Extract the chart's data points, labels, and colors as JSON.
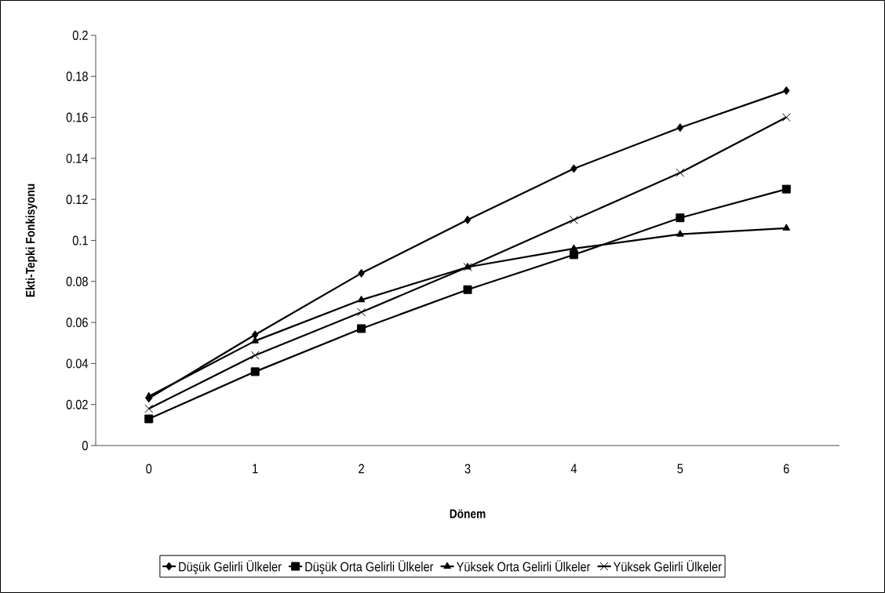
{
  "chart_data": {
    "type": "line",
    "xlabel": "Dönem",
    "ylabel": "Ekti-Tepki Fonkisyonu",
    "categories": [
      "0",
      "1",
      "2",
      "3",
      "4",
      "5",
      "6"
    ],
    "ylim": [
      0,
      0.2
    ],
    "yticks": [
      0,
      0.02,
      0.04,
      0.06,
      0.08,
      0.1,
      0.12,
      0.14,
      0.16,
      0.18,
      0.2
    ],
    "legend": "bottom",
    "line_style": "solid",
    "series": [
      {
        "name": "Düşük Gelirli Ülkeler",
        "color": "#000000",
        "marker": "diamond",
        "values": [
          0.023,
          0.054,
          0.084,
          0.11,
          0.135,
          0.155,
          0.173
        ]
      },
      {
        "name": "Düşük Orta Gelirli Ülkeler",
        "color": "#000000",
        "marker": "square",
        "values": [
          0.013,
          0.036,
          0.057,
          0.076,
          0.093,
          0.111,
          0.125
        ]
      },
      {
        "name": "Yüksek Orta Gelirli Ülkeler",
        "color": "#000000",
        "marker": "triangle",
        "values": [
          0.024,
          0.051,
          0.071,
          0.087,
          0.096,
          0.103,
          0.106
        ]
      },
      {
        "name": "Yüksek Gelirli Ülkeler",
        "color": "#000000",
        "marker": "cross",
        "values": [
          0.018,
          0.044,
          0.065,
          0.087,
          0.11,
          0.133,
          0.16
        ]
      }
    ]
  }
}
